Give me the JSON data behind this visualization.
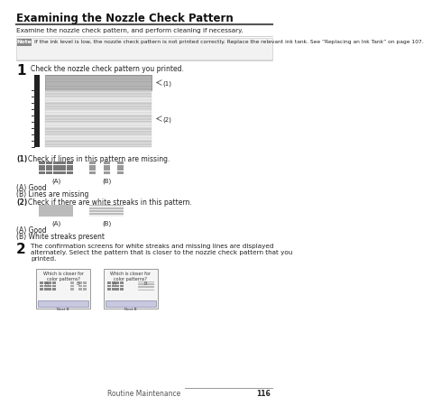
{
  "title": "Examining the Nozzle Check Pattern",
  "subtitle": "Examine the nozzle check pattern, and perform cleaning if necessary.",
  "note_label": "Note",
  "note_text": "If the ink level is low, the nozzle check pattern is not printed correctly. Replace the relevant ink tank. See “Replacing an Ink Tank” on page 107.",
  "step1_label": "1",
  "step1_text": "Check the nozzle check pattern you printed.",
  "label1": "(1)",
  "label2": "(2)",
  "check1_label": "(1)",
  "check1_text": "Check if lines in this pattern are missing.",
  "check2_label": "(2)",
  "check2_text": "Check if there are white streaks in this pattern.",
  "A_label": "(A)",
  "B_label": "(B)",
  "good_label": "(A) Good",
  "missing_label": "(B) Lines are missing",
  "good2_label": "(A) Good",
  "streaks_label": "(B) White streaks present",
  "step2_label": "2",
  "step2_text": "The confirmation screens for white streaks and missing lines are displayed\nalternately. Select the pattern that is closer to the nozzle check pattern that you\nprinted.",
  "screen1_title": "Which is closer for\ncolor patterns?",
  "screen2_title": "Which is closer for\ncolor patterns?",
  "section_label": "Routine Maintenance",
  "page_num": "116",
  "bg_color": "#ffffff"
}
